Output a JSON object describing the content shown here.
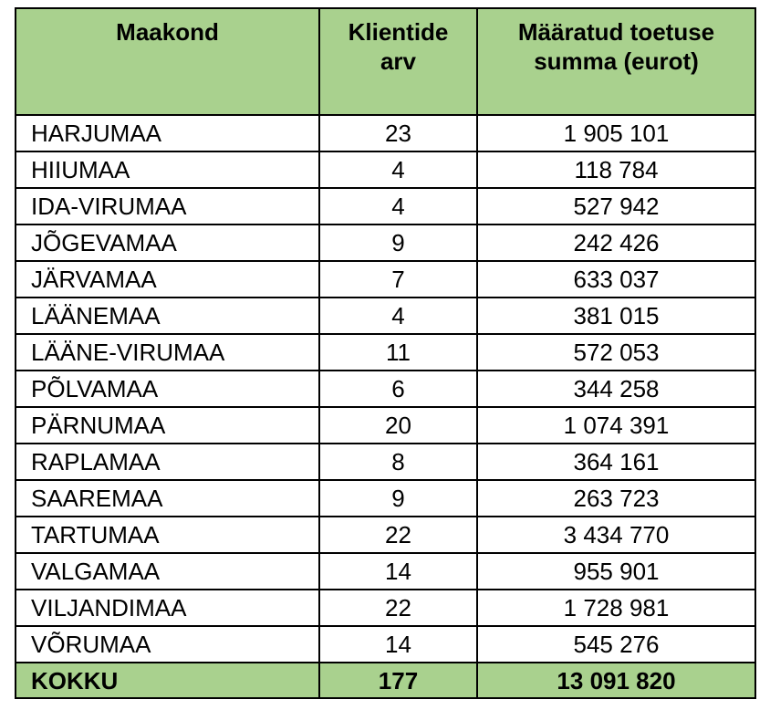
{
  "table": {
    "headers": [
      "Maakond",
      "Klientide arv",
      "Määratud toetuse summa (eurot)"
    ],
    "rows": [
      {
        "county": "HARJUMAA",
        "clients": "23",
        "amount": "1 905 101"
      },
      {
        "county": "HIIUMAA",
        "clients": "4",
        "amount": "118 784"
      },
      {
        "county": "IDA-VIRUMAA",
        "clients": "4",
        "amount": "527 942"
      },
      {
        "county": "JÕGEVAMAA",
        "clients": "9",
        "amount": "242 426"
      },
      {
        "county": "JÄRVAMAA",
        "clients": "7",
        "amount": "633 037"
      },
      {
        "county": "LÄÄNEMAA",
        "clients": "4",
        "amount": "381 015"
      },
      {
        "county": "LÄÄNE-VIRUMAA",
        "clients": "11",
        "amount": "572 053"
      },
      {
        "county": "PÕLVAMAA",
        "clients": "6",
        "amount": "344 258"
      },
      {
        "county": "PÄRNUMAA",
        "clients": "20",
        "amount": "1 074 391"
      },
      {
        "county": "RAPLAMAA",
        "clients": "8",
        "amount": "364 161"
      },
      {
        "county": "SAAREMAA",
        "clients": "9",
        "amount": "263 723"
      },
      {
        "county": "TARTUMAA",
        "clients": "22",
        "amount": "3 434 770"
      },
      {
        "county": "VALGAMAA",
        "clients": "14",
        "amount": "955 901"
      },
      {
        "county": "VILJANDIMAA",
        "clients": "22",
        "amount": "1 728 981"
      },
      {
        "county": "VÕRUMAA",
        "clients": "14",
        "amount": "545 276"
      }
    ],
    "total": {
      "label": "KOKKU",
      "clients": "177",
      "amount": "13 091 820"
    }
  },
  "colors": {
    "header_bg": "#a9d18e",
    "total_bg": "#a9d18e",
    "border": "#000000"
  }
}
